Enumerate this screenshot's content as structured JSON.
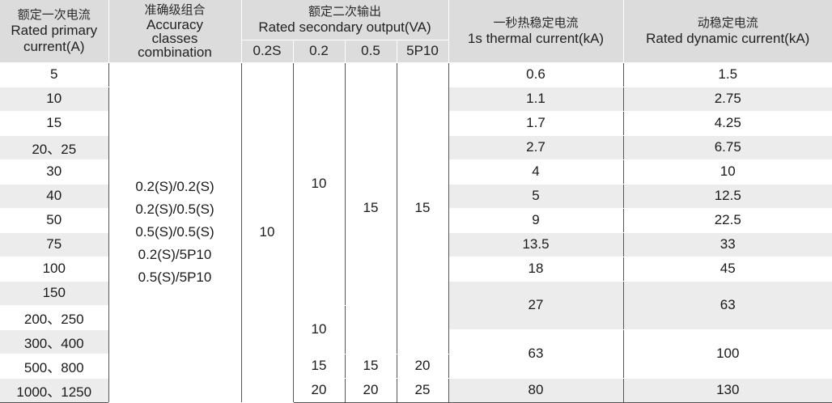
{
  "header": {
    "col_current_cn": "额定一次电流",
    "col_current_en1": "Rated primary",
    "col_current_en2": "current(A)",
    "col_accuracy_cn": "准确级组合",
    "col_accuracy_en1": "Accuracy",
    "col_accuracy_en2": "classes",
    "col_accuracy_en3": "combination",
    "col_output_cn": "额定二次输出",
    "col_output_en": "Rated secondary output(VA)",
    "sub_02s": "0.2S",
    "sub_02": "0.2",
    "sub_05": "0.5",
    "sub_5p10": "5P10",
    "col_thermal_cn": "一秒热稳定电流",
    "col_thermal_en": "1s thermal current(kA)",
    "col_dynamic_cn": "动稳定电流",
    "col_dynamic_en": "Rated dynamic current(kA)"
  },
  "currents": [
    "5",
    "10",
    "15",
    "20、25",
    "30",
    "40",
    "50",
    "75",
    "100",
    "150",
    "200、250",
    "300、400",
    "500、800",
    "1000、1250"
  ],
  "accuracy_combinations": [
    "0.2(S)/0.2(S)",
    "0.2(S)/0.5(S)",
    "0.5(S)/0.5(S)",
    "0.2(S)/5P10",
    "0.5(S)/5P10"
  ],
  "output": {
    "v02s_main": "10",
    "v02_main": "10",
    "v05_main": "15",
    "v5p10_main": "15",
    "v02_mid": "10",
    "row_500_v02": "15",
    "row_500_v05": "15",
    "row_500_v5p10": "20",
    "row_1000_v02": "20",
    "row_1000_v05": "20",
    "row_1000_v5p10": "25"
  },
  "thermal": [
    "0.6",
    "1.1",
    "1.7",
    "2.7",
    "4",
    "5",
    "9",
    "13.5",
    "18",
    "27",
    "63",
    "80"
  ],
  "dynamic": [
    "1.5",
    "2.75",
    "4.25",
    "6.75",
    "10",
    "12.5",
    "22.5",
    "33",
    "45",
    "63",
    "100",
    "130"
  ]
}
